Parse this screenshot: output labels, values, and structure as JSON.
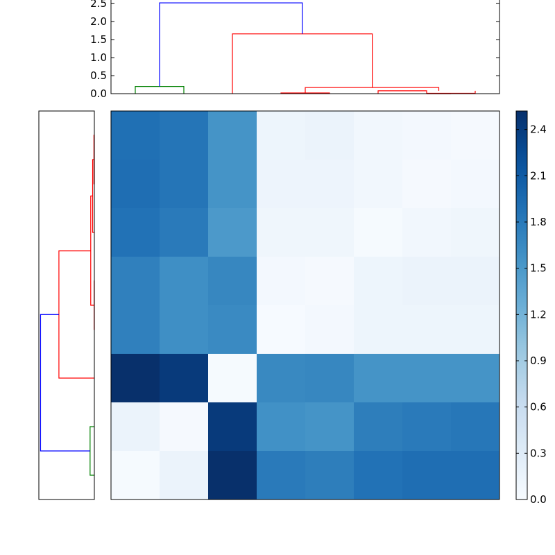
{
  "chart_data": [
    {
      "type": "heatmap",
      "title": "",
      "xlabel": "",
      "ylabel": "",
      "rows": 8,
      "cols": 8,
      "values": [
        [
          1.9,
          1.85,
          1.55,
          0.12,
          0.15,
          0.08,
          0.05,
          0.03
        ],
        [
          1.92,
          1.85,
          1.55,
          0.13,
          0.13,
          0.08,
          0.03,
          0.05
        ],
        [
          1.88,
          1.8,
          1.5,
          0.1,
          0.1,
          0.02,
          0.08,
          0.1
        ],
        [
          1.75,
          1.6,
          1.68,
          0.05,
          0.03,
          0.12,
          0.15,
          0.15
        ],
        [
          1.75,
          1.6,
          1.65,
          0.01,
          0.05,
          0.12,
          0.12,
          0.12
        ],
        [
          2.52,
          2.42,
          0.02,
          1.66,
          1.68,
          1.55,
          1.55,
          1.55
        ],
        [
          0.15,
          0.03,
          2.42,
          1.58,
          1.55,
          1.77,
          1.8,
          1.83
        ],
        [
          0.02,
          0.15,
          2.52,
          1.8,
          1.77,
          1.88,
          1.92,
          1.92
        ]
      ],
      "colorbar": {
        "min": 0.0,
        "max": 2.52,
        "ticks": [
          "0.0",
          "0.3",
          "0.6",
          "0.9",
          "1.2",
          "1.5",
          "1.8",
          "2.1",
          "2.4"
        ],
        "tick_values": [
          0.0,
          0.3,
          0.6,
          0.9,
          1.2,
          1.5,
          1.8,
          2.1,
          2.4
        ],
        "colormap": "Blues"
      }
    },
    {
      "type": "dendrogram",
      "orientation": "top",
      "ylim": [
        0,
        2.6
      ],
      "yticks": [
        "0.0",
        "0.5",
        "1.0",
        "1.5",
        "2.0",
        "2.5"
      ],
      "ytick_values": [
        0.0,
        0.5,
        1.0,
        1.5,
        2.0,
        2.5
      ],
      "leaf_count": 8,
      "links": [
        {
          "left": 0.5,
          "right": 1.5,
          "height": 0.2,
          "left_h": 0,
          "right_h": 0,
          "color": "#008000"
        },
        {
          "left": 3.5,
          "right": 4.5,
          "height": 0.02,
          "left_h": 0,
          "right_h": 0,
          "color": "#ff0000"
        },
        {
          "left": 5.5,
          "right": 6.5,
          "height": 0.08,
          "left_h": 0,
          "right_h": 0,
          "color": "#ff0000"
        },
        {
          "left": 6.5,
          "right": 7.5,
          "height": 0.01,
          "left_h": 0,
          "right_h": 0.08,
          "color": "#ff0000"
        },
        {
          "left": 6.5,
          "right": 7.0,
          "height": 0.0,
          "left_h": 0,
          "right_h": 0,
          "color": "#ff0000"
        },
        {
          "left": 4.0,
          "right": 6.75,
          "height": 0.17,
          "left_h": 0.02,
          "right_h": 0.08,
          "color": "#ff0000"
        },
        {
          "left": 2.5,
          "right": 5.38,
          "height": 1.66,
          "left_h": 0,
          "right_h": 0.17,
          "color": "#ff0000"
        },
        {
          "left": 1.0,
          "right": 3.94,
          "height": 2.52,
          "left_h": 0.2,
          "right_h": 1.66,
          "color": "#0000ff"
        }
      ]
    },
    {
      "type": "dendrogram",
      "orientation": "left",
      "xlim": [
        2.6,
        0
      ],
      "leaf_count": 8,
      "links": [
        {
          "left": 0.5,
          "right": 1.5,
          "height": 0.02,
          "left_h": 0,
          "right_h": 0,
          "color": "#ff0000"
        },
        {
          "left": 1.0,
          "right": 2.5,
          "height": 0.08,
          "left_h": 0.02,
          "right_h": 0,
          "color": "#ff0000"
        },
        {
          "left": 3.5,
          "right": 4.5,
          "height": 0.01,
          "left_h": 0,
          "right_h": 0,
          "color": "#ff0000"
        },
        {
          "left": 1.75,
          "right": 4.0,
          "height": 0.17,
          "left_h": 0.08,
          "right_h": 0.01,
          "color": "#ff0000"
        },
        {
          "left": 2.88,
          "right": 5.5,
          "height": 1.66,
          "left_h": 0.17,
          "right_h": 0,
          "color": "#ff0000"
        },
        {
          "left": 6.5,
          "right": 7.5,
          "height": 0.2,
          "left_h": 0,
          "right_h": 0,
          "color": "#008000"
        },
        {
          "left": 4.19,
          "right": 7.0,
          "height": 2.52,
          "left_h": 1.66,
          "right_h": 0.2,
          "color": "#0000ff"
        }
      ]
    }
  ]
}
